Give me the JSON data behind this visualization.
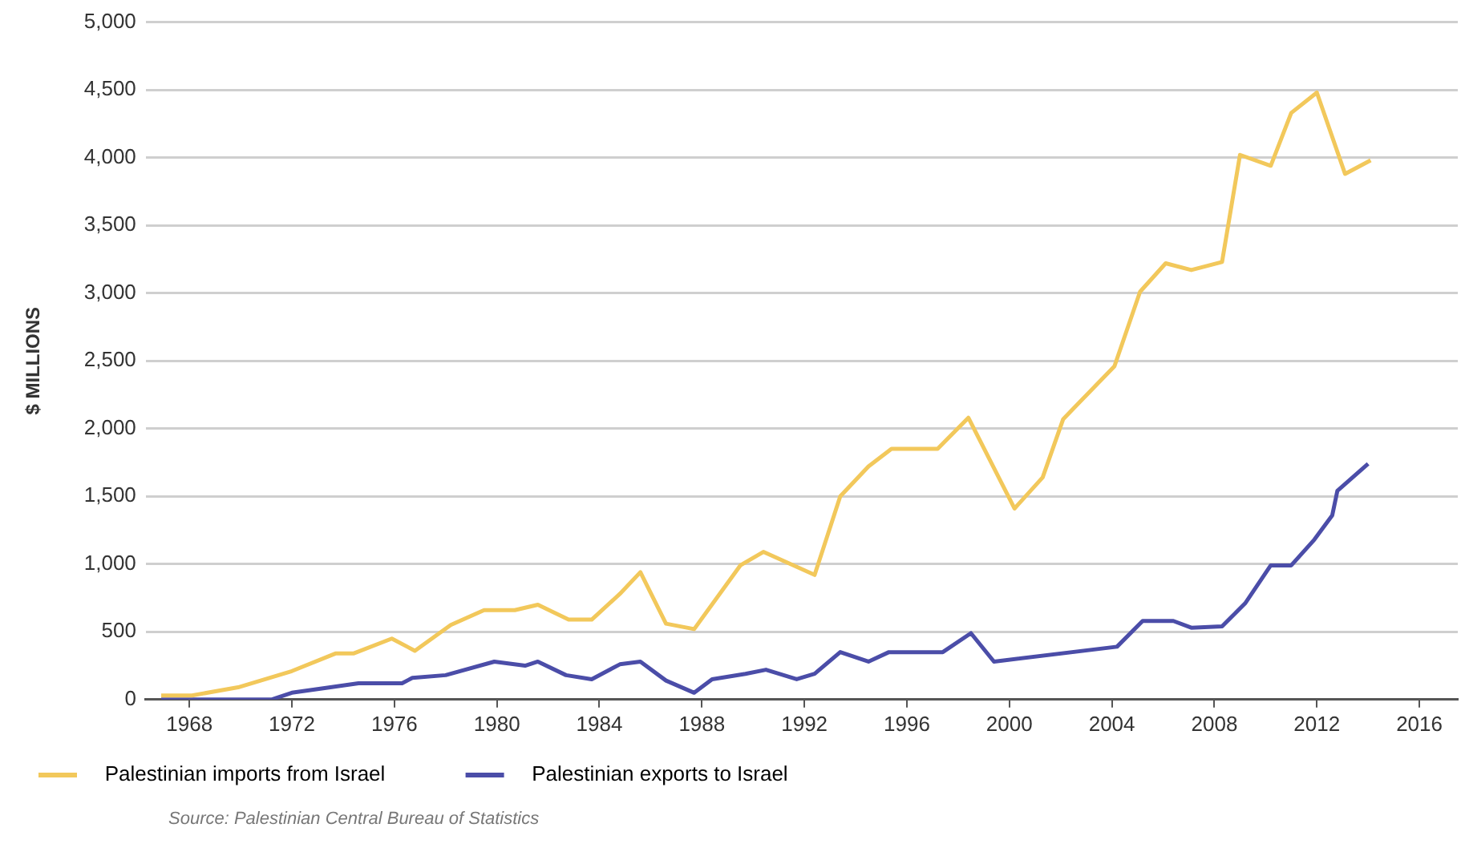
{
  "chart_data": {
    "type": "line",
    "ylabel": "$ MILLIONS",
    "xlim": [
      1966.3,
      2017.5
    ],
    "xticks": [
      1968,
      1972,
      1976,
      1980,
      1984,
      1988,
      1992,
      1996,
      2000,
      2004,
      2008,
      2012,
      2016
    ],
    "ylim": [
      0,
      5000
    ],
    "yticks": [
      0,
      500,
      {
        "value": 1000,
        "label": "1,000"
      },
      {
        "value": 1500,
        "label": "1,500"
      },
      {
        "value": 2000,
        "label": "2,000"
      },
      {
        "value": 2500,
        "label": "2,500"
      },
      {
        "value": 3000,
        "label": "3,000"
      },
      {
        "value": 3500,
        "label": "3,500"
      },
      {
        "value": 4000,
        "label": "4,000"
      },
      {
        "value": 4500,
        "label": "4,500"
      },
      {
        "value": 5000,
        "label": "5,000"
      }
    ],
    "grid": "y",
    "legend": "bottom left",
    "marker": "none",
    "line_style": "solid",
    "series": [
      {
        "name": "Palestinian imports from Israel",
        "color": "#f2c85b",
        "x": [
          1966.9,
          1968.1,
          1969.9,
          1972.0,
          1973.7,
          1974.4,
          1975.9,
          1976.8,
          1978.2,
          1979.5,
          1980.7,
          1981.6,
          1982.8,
          1983.7,
          1984.8,
          1985.6,
          1986.6,
          1987.7,
          1989.5,
          1990.4,
          1992.4,
          1993.4,
          1994.5,
          1995.4,
          1997.2,
          1998.4,
          2000.2,
          2001.3,
          2002.1,
          2004.1,
          2005.1,
          2006.1,
          2007.1,
          2008.3,
          2009.0,
          2010.2,
          2011.0,
          2012.0,
          2013.1,
          2014.1
        ],
        "values": [
          30,
          30,
          90,
          210,
          340,
          340,
          450,
          360,
          550,
          660,
          660,
          700,
          590,
          590,
          780,
          940,
          560,
          520,
          990,
          1090,
          920,
          1500,
          1720,
          1850,
          1850,
          2080,
          1410,
          1640,
          2070,
          2460,
          3010,
          3220,
          3170,
          3230,
          4020,
          3940,
          4330,
          4480,
          3880,
          3980
        ]
      },
      {
        "name": "Palestinian exports to Israel",
        "color": "#4b4da8",
        "x": [
          1966.9,
          1971.2,
          1972.0,
          1973.5,
          1974.6,
          1976.3,
          1976.7,
          1978.0,
          1979.9,
          1981.1,
          1981.6,
          1982.7,
          1983.7,
          1984.8,
          1985.6,
          1986.6,
          1987.7,
          1988.4,
          1989.7,
          1990.5,
          1991.7,
          1992.4,
          1993.4,
          1994.5,
          1995.3,
          1997.4,
          1998.5,
          1999.4,
          2004.2,
          2005.2,
          2006.4,
          2007.1,
          2008.3,
          2009.2,
          2010.2,
          2011.0,
          2011.9,
          2012.6,
          2012.8,
          2014.0
        ],
        "values": [
          0,
          0,
          50,
          90,
          120,
          120,
          160,
          180,
          280,
          250,
          280,
          180,
          150,
          260,
          280,
          140,
          50,
          150,
          190,
          220,
          150,
          190,
          350,
          280,
          350,
          350,
          490,
          280,
          390,
          580,
          580,
          530,
          540,
          710,
          990,
          990,
          1180,
          1360,
          1540,
          1740
        ]
      }
    ],
    "annotations": [
      "Source: Palestinian Central Bureau of Statistics"
    ]
  }
}
